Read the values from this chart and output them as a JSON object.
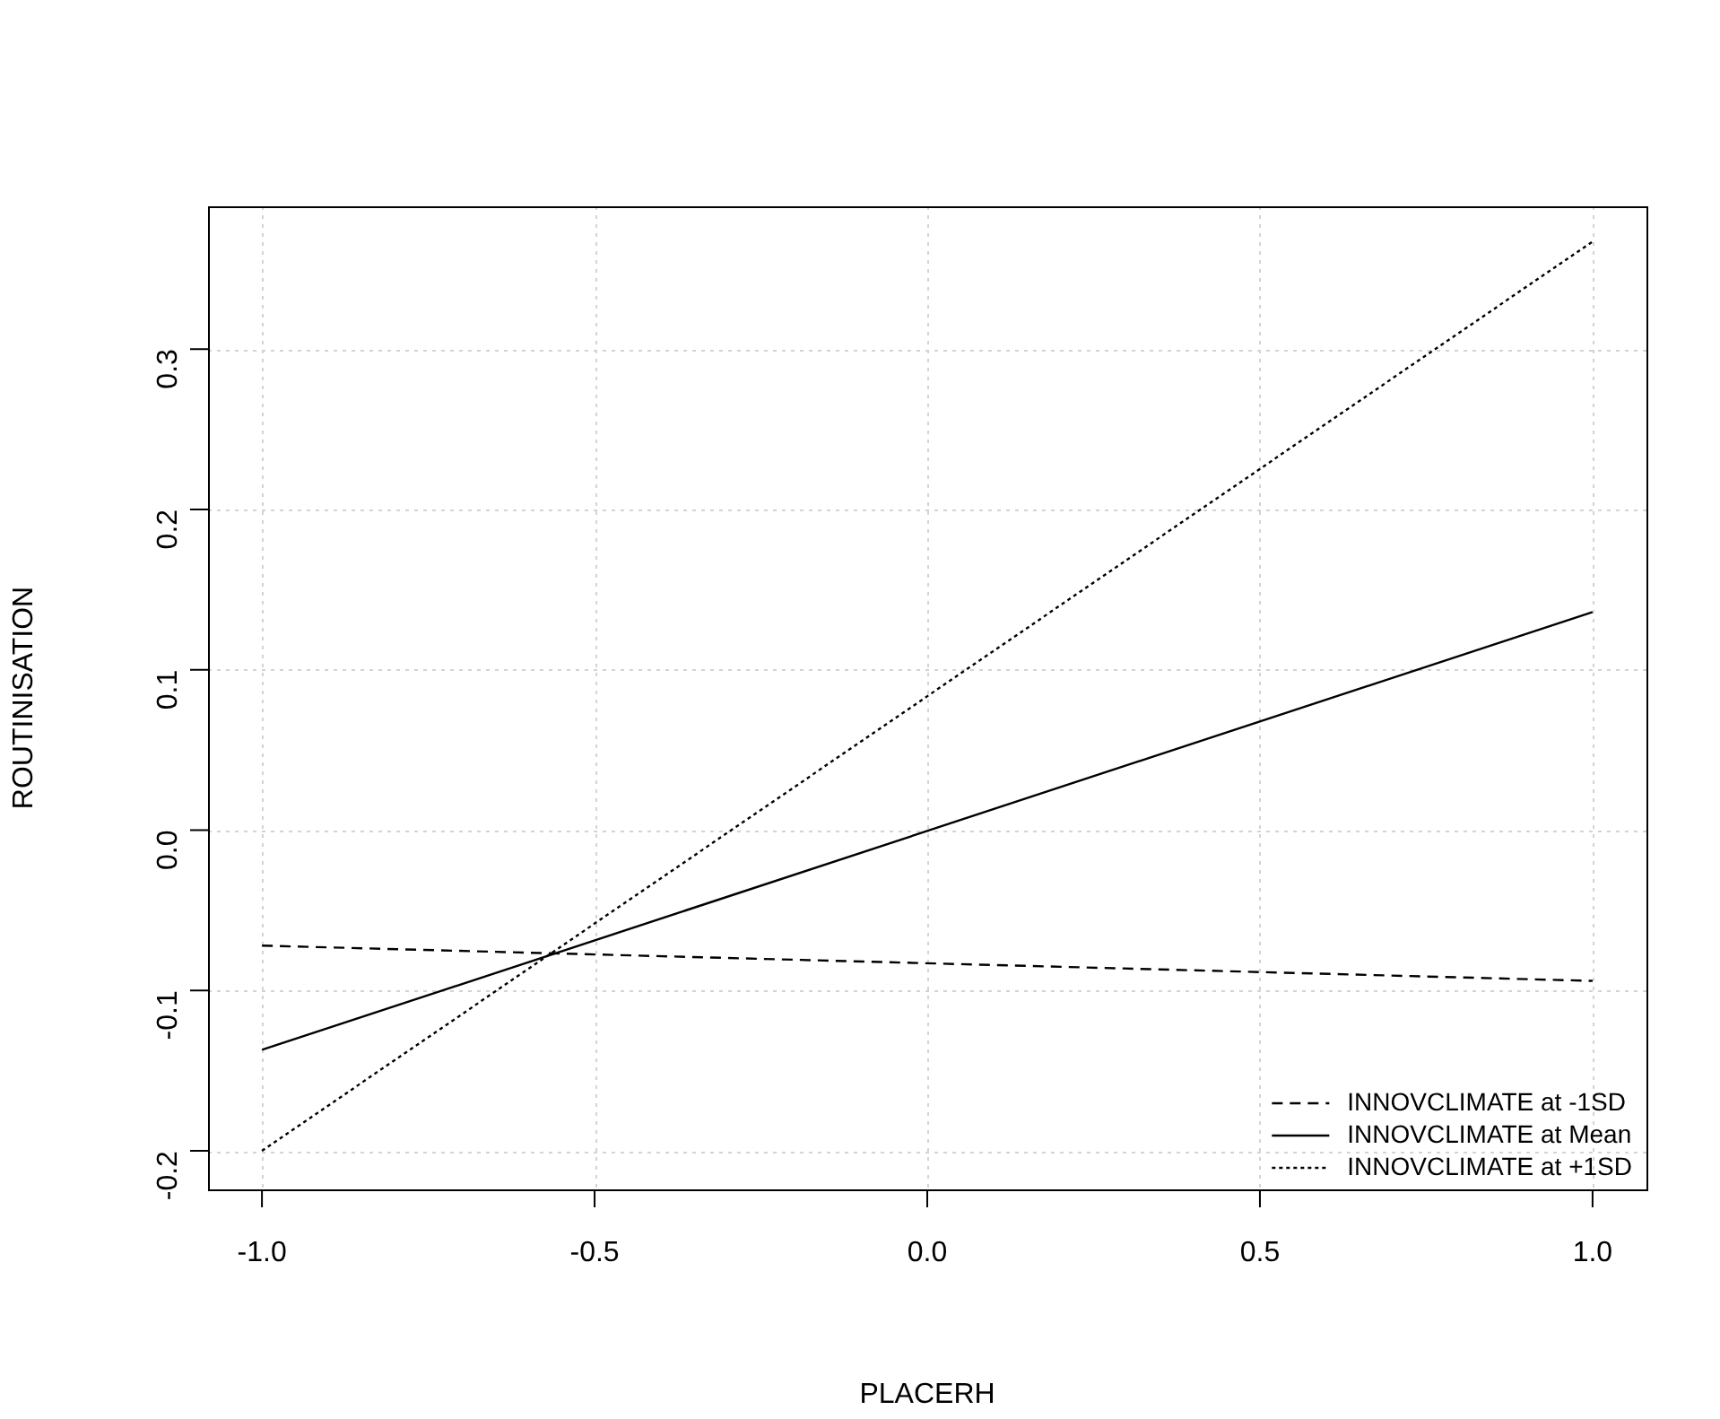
{
  "chart_data": {
    "type": "line",
    "xlabel": "PLACERH",
    "ylabel": "ROUTINISATION",
    "x": [
      -1,
      1
    ],
    "series": [
      {
        "name": "INNOVCLIMATE at -1SD",
        "color": "#000000",
        "line_style": "dashed",
        "values": [
          -0.072,
          -0.094
        ]
      },
      {
        "name": "INNOVCLIMATE at Mean",
        "color": "#000000",
        "line_style": "solid",
        "values": [
          -0.137,
          0.136
        ]
      },
      {
        "name": "INNOVCLIMATE at +1SD",
        "color": "#000000",
        "line_style": "dotted",
        "values": [
          -0.2,
          0.367
        ]
      }
    ],
    "xlim": [
      -1.081,
      1.081
    ],
    "xticks": [
      {
        "value": -1,
        "label": "-1.0"
      },
      -0.5,
      {
        "value": 0,
        "label": "0.0"
      },
      0.5,
      {
        "value": 1,
        "label": "1.0"
      }
    ],
    "ylim": [
      -0.224,
      0.389
    ],
    "yticks": [
      -0.2,
      -0.1,
      {
        "value": 0,
        "label": "0.0"
      },
      0.1,
      0.2,
      0.3
    ],
    "grid": true,
    "legend": "bottom right",
    "marker": "none"
  }
}
